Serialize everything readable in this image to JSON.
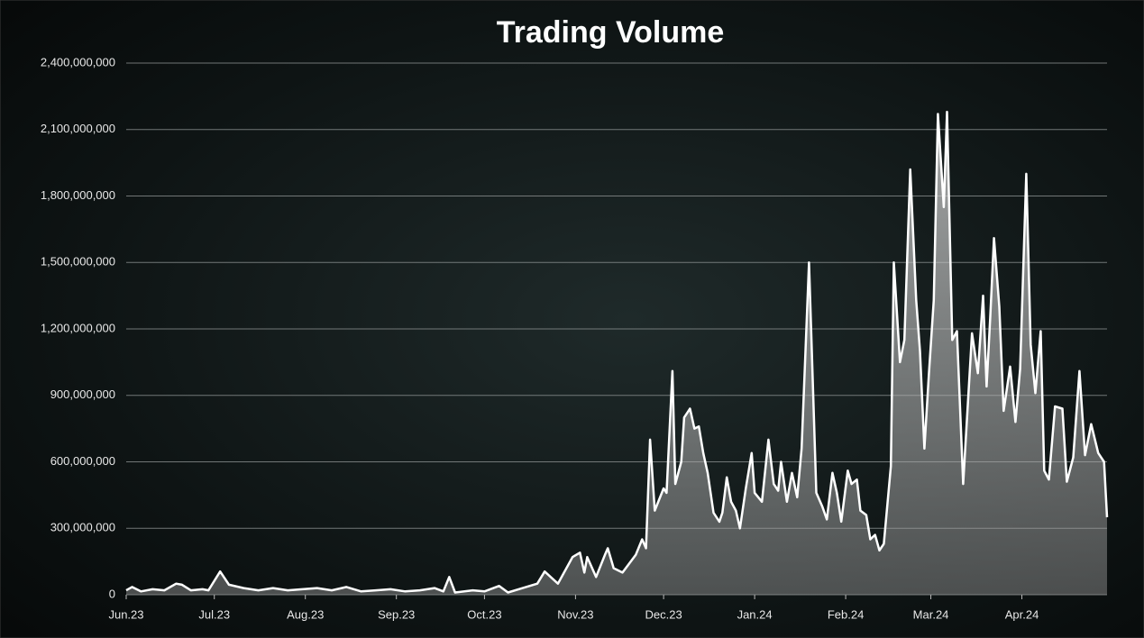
{
  "chart_data": {
    "type": "area",
    "title": "Trading Volume",
    "color": "#ffffff",
    "grid": true,
    "x": [
      0,
      2,
      5,
      9,
      13,
      17,
      19,
      22,
      26,
      28,
      32,
      35,
      40,
      45,
      50,
      55,
      60,
      65,
      70,
      75,
      80,
      85,
      90,
      95,
      100,
      105,
      108,
      110,
      112,
      118,
      122,
      127,
      130,
      135,
      140,
      142.5,
      147,
      152,
      154.5,
      156,
      157,
      160,
      163,
      164,
      166,
      169,
      173.5,
      175.7,
      177,
      178.4,
      180,
      183,
      184,
      186,
      187,
      189,
      190,
      192,
      193.5,
      195,
      196.5,
      198,
      200,
      202,
      203,
      204.5,
      206,
      207.6,
      209,
      211,
      213,
      214,
      216.5,
      218.7,
      220.5,
      222,
      223,
      225,
      226.7,
      228.5,
      230,
      232.5,
      235,
      237,
      238.6,
      240.5,
      242,
      243.5,
      245.7,
      247,
      248.8,
      250,
      252,
      253.4,
      255,
      256.5,
      258,
      260.4,
      261.4,
      263.5,
      265,
      267,
      269,
      270.3,
      271.8,
      273.3,
      275,
      276.4,
      278.4,
      279.5,
      281.3,
      282.9,
      285,
      288,
      290,
      291.8,
      293,
      294.2,
      295.5,
      297.3,
      298.8,
      301,
      302.8,
      304.4,
      306.5,
      308,
      309.6,
      311.4,
      312.6,
      314.2,
      316.3,
      318.8,
      320.3,
      322.5,
      324.6,
      326.5,
      328.6,
      331,
      333,
      334
    ],
    "values": [
      20000000,
      35000000,
      15000000,
      25000000,
      20000000,
      50000000,
      45000000,
      20000000,
      25000000,
      20000000,
      105000000,
      45000000,
      30000000,
      20000000,
      30000000,
      20000000,
      25000000,
      30000000,
      20000000,
      35000000,
      15000000,
      20000000,
      25000000,
      15000000,
      20000000,
      30000000,
      15000000,
      80000000,
      10000000,
      20000000,
      15000000,
      40000000,
      10000000,
      30000000,
      50000000,
      105000000,
      50000000,
      170000000,
      190000000,
      100000000,
      170000000,
      80000000,
      180000000,
      210000000,
      120000000,
      100000000,
      180000000,
      250000000,
      210000000,
      700000000,
      380000000,
      480000000,
      460000000,
      1010000000,
      500000000,
      600000000,
      800000000,
      840000000,
      750000000,
      760000000,
      640000000,
      550000000,
      370000000,
      330000000,
      370000000,
      530000000,
      420000000,
      380000000,
      300000000,
      480000000,
      640000000,
      460000000,
      420000000,
      700000000,
      500000000,
      470000000,
      600000000,
      420000000,
      550000000,
      440000000,
      660000000,
      1500000000,
      460000000,
      400000000,
      340000000,
      550000000,
      460000000,
      330000000,
      560000000,
      500000000,
      520000000,
      380000000,
      360000000,
      250000000,
      270000000,
      200000000,
      230000000,
      580000000,
      1500000000,
      1050000000,
      1150000000,
      1920000000,
      1330000000,
      1100000000,
      660000000,
      990000000,
      1330000000,
      2170000000,
      1750000000,
      2180000000,
      1150000000,
      1190000000,
      500000000,
      1180000000,
      1000000000,
      1350000000,
      940000000,
      1250000000,
      1610000000,
      1300000000,
      830000000,
      1030000000,
      780000000,
      1020000000,
      1900000000,
      1130000000,
      910000000,
      1190000000,
      560000000,
      520000000,
      850000000,
      840000000,
      510000000,
      620000000,
      1010000000,
      630000000,
      770000000,
      640000000,
      600000000,
      350000000
    ],
    "xlim": [
      0,
      334
    ],
    "xticks": [
      {
        "value": 0,
        "label": "Jun.23"
      },
      {
        "value": 30,
        "label": "Jul.23"
      },
      {
        "value": 61,
        "label": "Aug.23"
      },
      {
        "value": 92,
        "label": "Sep.23"
      },
      {
        "value": 122,
        "label": "Oct.23"
      },
      {
        "value": 153,
        "label": "Nov.23"
      },
      {
        "value": 183,
        "label": "Dec.23"
      },
      {
        "value": 214,
        "label": "Jan.24"
      },
      {
        "value": 245,
        "label": "Feb.24"
      },
      {
        "value": 274,
        "label": "Mar.24"
      },
      {
        "value": 305,
        "label": "Apr.24"
      }
    ],
    "ylim": [
      0,
      2400000000
    ],
    "yticks": [
      0,
      {
        "value": 300000000,
        "label": "300,000,000"
      },
      {
        "value": 600000000,
        "label": "600,000,000"
      },
      {
        "value": 900000000,
        "label": "900,000,000"
      },
      {
        "value": 1200000000,
        "label": "1,200,000,000"
      },
      {
        "value": 1500000000,
        "label": "1,500,000,000"
      },
      {
        "value": 1800000000,
        "label": "1,800,000,000"
      },
      {
        "value": 2100000000,
        "label": "2,100,000,000"
      },
      {
        "value": 2400000000,
        "label": "2,400,000,000"
      }
    ]
  }
}
